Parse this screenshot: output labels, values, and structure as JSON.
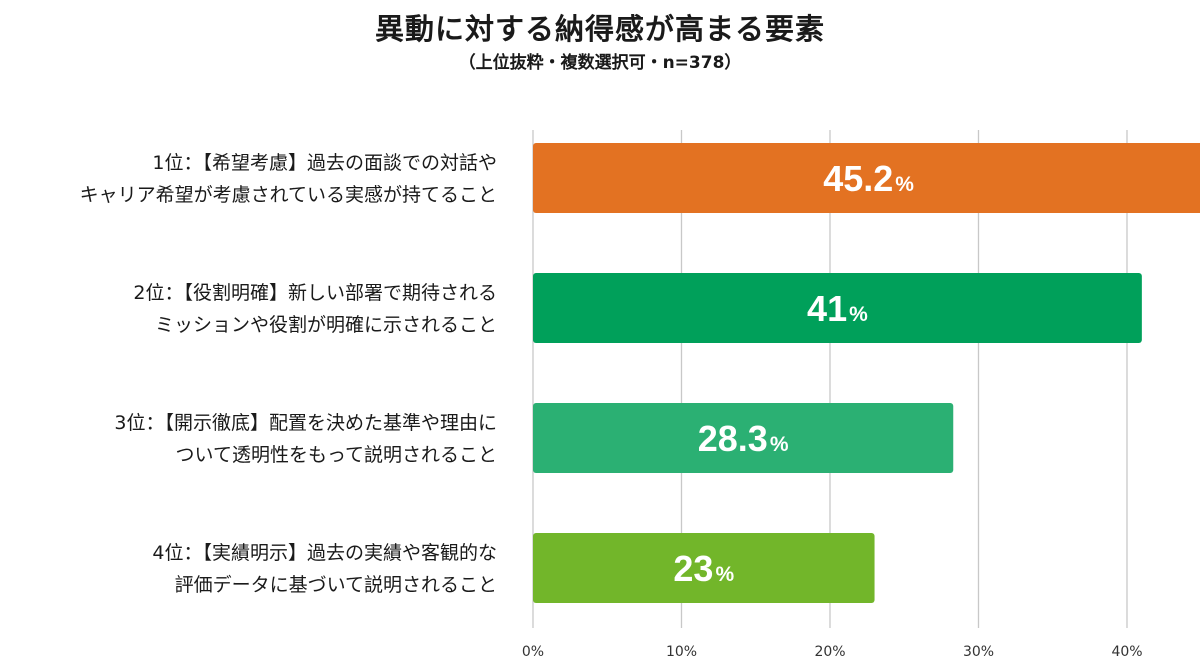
{
  "chart_data": {
    "type": "bar",
    "orientation": "horizontal",
    "title": "異動に対する納得感が高まる要素",
    "subtitle": "（上位抜粋・複数選択可・n=378）",
    "categories": [
      [
        "1位：【希望考慮】過去の面談での対話や",
        "キャリア希望が考慮されている実感が持てること"
      ],
      [
        "2位：【役割明確】新しい部署で期待される",
        "ミッションや役割が明確に示されること"
      ],
      [
        "3位：【開示徹底】配置を決めた基準や理由に",
        "ついて透明性をもって説明されること"
      ],
      [
        "4位：【実績明示】過去の実績や客観的な",
        "評価データに基づいて説明されること"
      ]
    ],
    "values": [
      45.2,
      41,
      28.3,
      23
    ],
    "value_labels": [
      "45.2",
      "41",
      "28.3",
      "23"
    ],
    "value_unit": "%",
    "colors": [
      "#e37222",
      "#00a05a",
      "#2bb073",
      "#72b62a"
    ],
    "xlim": [
      0,
      45
    ],
    "xticks": [
      0,
      10,
      20,
      30,
      40
    ],
    "xtick_labels": [
      "0%",
      "10%",
      "20%",
      "30%",
      "40%"
    ],
    "grid": true
  }
}
